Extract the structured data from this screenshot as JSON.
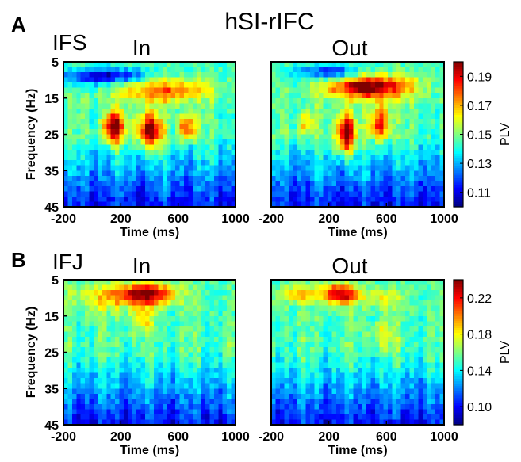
{
  "figure": {
    "title": "hSI-rIFC",
    "colormap": [
      "#00007f",
      "#0000ff",
      "#007fff",
      "#00ffff",
      "#7fff7f",
      "#ffff00",
      "#ff7f00",
      "#ff0000",
      "#7f0000"
    ]
  },
  "chart_data": [
    {
      "type": "heatmap",
      "panel_letter": "A",
      "region": "IFS",
      "title": "In",
      "xlabel": "Time (ms)",
      "ylabel": "Frequency (Hz)",
      "x_ticks": [
        "-200",
        "200",
        "600",
        "1000"
      ],
      "y_ticks": [
        "5",
        "15",
        "25",
        "35",
        "45"
      ],
      "xlim": [
        -200,
        1000
      ],
      "ylim": [
        45,
        5
      ],
      "clim": [
        0.1,
        0.2
      ],
      "features": [
        {
          "t": 80,
          "f": 9,
          "st": 200,
          "sf": 1.6,
          "a": -0.04
        },
        {
          "t": 500,
          "f": 13,
          "st": 220,
          "sf": 2.2,
          "a": 0.035
        },
        {
          "t": 150,
          "f": 23,
          "st": 50,
          "sf": 3,
          "a": 0.06
        },
        {
          "t": 400,
          "f": 24,
          "st": 60,
          "sf": 3.5,
          "a": 0.055
        },
        {
          "t": 660,
          "f": 23,
          "st": 40,
          "sf": 2.5,
          "a": 0.04
        }
      ]
    },
    {
      "type": "heatmap",
      "panel_letter": "A",
      "region": "IFS",
      "title": "Out",
      "xlabel": "Time (ms)",
      "ylabel": "",
      "x_ticks": [
        "-200",
        "200",
        "600",
        "1000"
      ],
      "y_ticks": [],
      "xlim": [
        -200,
        1000
      ],
      "ylim": [
        45,
        5
      ],
      "clim": [
        0.1,
        0.2
      ],
      "colorbar": {
        "label": "PLV",
        "ticks": [
          "0.11",
          "0.13",
          "0.15",
          "0.17",
          "0.19"
        ],
        "min": 0.1,
        "max": 0.2
      },
      "features": [
        {
          "t": 480,
          "f": 12,
          "st": 200,
          "sf": 2.2,
          "a": 0.06
        },
        {
          "t": 320,
          "f": 25,
          "st": 45,
          "sf": 4,
          "a": 0.06
        },
        {
          "t": 560,
          "f": 22,
          "st": 50,
          "sf": 3.5,
          "a": 0.045
        },
        {
          "t": 50,
          "f": 22,
          "st": 40,
          "sf": 2.5,
          "a": 0.025
        },
        {
          "t": 200,
          "f": 8,
          "st": 150,
          "sf": 1.5,
          "a": -0.03
        }
      ]
    },
    {
      "type": "heatmap",
      "panel_letter": "B",
      "region": "IFJ",
      "title": "In",
      "xlabel": "Time (ms)",
      "ylabel": "Frequency (Hz)",
      "x_ticks": [
        "-200",
        "200",
        "600",
        "1000"
      ],
      "y_ticks": [
        "5",
        "15",
        "25",
        "35",
        "45"
      ],
      "xlim": [
        -200,
        1000
      ],
      "ylim": [
        45,
        5
      ],
      "clim": [
        0.08,
        0.24
      ],
      "features": [
        {
          "t": 380,
          "f": 9,
          "st": 140,
          "sf": 2,
          "a": 0.08
        },
        {
          "t": 100,
          "f": 10,
          "st": 200,
          "sf": 2.5,
          "a": 0.03
        },
        {
          "t": 350,
          "f": 16,
          "st": 60,
          "sf": 2.5,
          "a": 0.03
        }
      ]
    },
    {
      "type": "heatmap",
      "panel_letter": "B",
      "region": "IFJ",
      "title": "Out",
      "xlabel": "Time (ms)",
      "ylabel": "",
      "x_ticks": [
        "-200",
        "200",
        "600",
        "1000"
      ],
      "y_ticks": [],
      "xlim": [
        -200,
        1000
      ],
      "ylim": [
        45,
        5
      ],
      "clim": [
        0.08,
        0.24
      ],
      "colorbar": {
        "label": "PLV",
        "ticks": [
          "0.10",
          "0.14",
          "0.18",
          "0.22"
        ],
        "min": 0.08,
        "max": 0.24
      },
      "features": [
        {
          "t": 280,
          "f": 9,
          "st": 80,
          "sf": 2,
          "a": 0.08
        },
        {
          "t": 0,
          "f": 9,
          "st": 120,
          "sf": 1.8,
          "a": 0.035
        },
        {
          "t": 550,
          "f": 10,
          "st": 120,
          "sf": 2,
          "a": 0.025
        },
        {
          "t": 580,
          "f": 20,
          "st": 80,
          "sf": 3,
          "a": 0.02
        }
      ]
    }
  ]
}
